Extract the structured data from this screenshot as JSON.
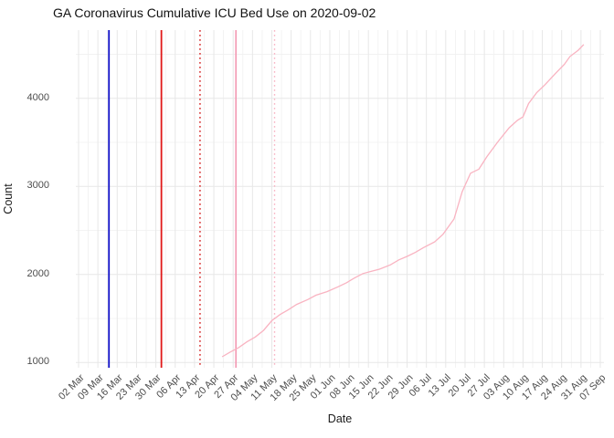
{
  "header": {
    "title": "GA Coronavirus Cumulative ICU Bed Use on 2020-09-02"
  },
  "axes": {
    "x": {
      "title": "Date",
      "start_date": "2020-03-02",
      "tick_interval_days": 7,
      "tick_labels": [
        "02 Mar",
        "09 Mar",
        "16 Mar",
        "23 Mar",
        "30 Mar",
        "06 Apr",
        "13 Apr",
        "20 Apr",
        "27 Apr",
        "04 May",
        "11 May",
        "18 May",
        "25 May",
        "01 Jun",
        "08 Jun",
        "15 Jun",
        "22 Jun",
        "29 Jun",
        "06 Jul",
        "13 Jul",
        "20 Jul",
        "27 Jul",
        "03 Aug",
        "10 Aug",
        "17 Aug",
        "24 Aug",
        "31 Aug",
        "07 Sep"
      ]
    },
    "y": {
      "title": "Count",
      "ticks": [
        1000,
        2000,
        3000,
        4000
      ],
      "minor_ticks": [
        1500,
        2500,
        3500,
        4500
      ]
    }
  },
  "chart_data": {
    "type": "line",
    "title": "GA Coronavirus Cumulative ICU Bed Use on 2020-09-02",
    "xlabel": "Date",
    "ylabel": "Count",
    "x_range": [
      "2020-03-02",
      "2020-09-07"
    ],
    "ylim": [
      938,
      4772
    ],
    "grid": "major-and-minor, light gray on white",
    "legend": "none",
    "series": [
      {
        "name": "cumulative-icu-bed-use",
        "color": "#f9b3c1",
        "points": [
          [
            "2020-04-23",
            1065
          ],
          [
            "2020-04-26",
            1120
          ],
          [
            "2020-04-29",
            1170
          ],
          [
            "2020-05-02",
            1235
          ],
          [
            "2020-05-05",
            1290
          ],
          [
            "2020-05-08",
            1365
          ],
          [
            "2020-05-11",
            1475
          ],
          [
            "2020-05-14",
            1545
          ],
          [
            "2020-05-17",
            1600
          ],
          [
            "2020-05-20",
            1660
          ],
          [
            "2020-05-24",
            1715
          ],
          [
            "2020-05-27",
            1765
          ],
          [
            "2020-05-31",
            1805
          ],
          [
            "2020-06-04",
            1860
          ],
          [
            "2020-06-07",
            1905
          ],
          [
            "2020-06-10",
            1960
          ],
          [
            "2020-06-13",
            2010
          ],
          [
            "2020-06-16",
            2035
          ],
          [
            "2020-06-19",
            2060
          ],
          [
            "2020-06-23",
            2110
          ],
          [
            "2020-06-26",
            2165
          ],
          [
            "2020-06-29",
            2205
          ],
          [
            "2020-07-02",
            2250
          ],
          [
            "2020-07-05",
            2305
          ],
          [
            "2020-07-09",
            2370
          ],
          [
            "2020-07-12",
            2455
          ],
          [
            "2020-07-16",
            2630
          ],
          [
            "2020-07-19",
            2940
          ],
          [
            "2020-07-22",
            3150
          ],
          [
            "2020-07-25",
            3195
          ],
          [
            "2020-07-28",
            3340
          ],
          [
            "2020-08-01",
            3510
          ],
          [
            "2020-08-05",
            3665
          ],
          [
            "2020-08-08",
            3750
          ],
          [
            "2020-08-10",
            3790
          ],
          [
            "2020-08-12",
            3940
          ],
          [
            "2020-08-15",
            4065
          ],
          [
            "2020-08-18",
            4155
          ],
          [
            "2020-08-22",
            4290
          ],
          [
            "2020-08-25",
            4385
          ],
          [
            "2020-08-27",
            4475
          ],
          [
            "2020-08-30",
            4545
          ],
          [
            "2020-09-01",
            4610
          ]
        ]
      }
    ],
    "vlines": [
      {
        "date": "2020-03-13",
        "color": "#1212c8",
        "style": "solid",
        "width": 1.8
      },
      {
        "date": "2020-04-01",
        "color": "#e01818",
        "style": "solid",
        "width": 1.8
      },
      {
        "date": "2020-04-15",
        "color": "#d42020",
        "style": "dotted",
        "width": 1.4
      },
      {
        "date": "2020-04-28",
        "color": "#f298b2",
        "style": "solid",
        "width": 1.6
      },
      {
        "date": "2020-05-12",
        "color": "#f8b7c6",
        "style": "dotted",
        "width": 1.4
      }
    ]
  },
  "colors": {
    "background": "#ffffff",
    "grid_major": "#e7e7e7",
    "grid_minor": "#f0f0f0",
    "axis_text": "#4d4d4d",
    "title_text": "#111111"
  }
}
